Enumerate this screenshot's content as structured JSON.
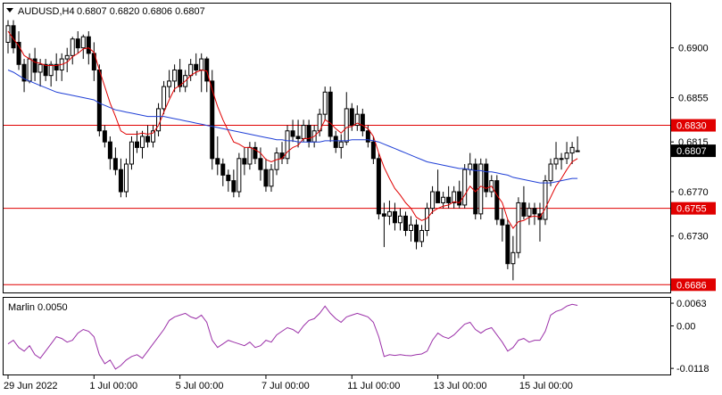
{
  "header": {
    "symbol": "AUDUSD,H4",
    "ohlc": "0.6807 0.6820 0.6806 0.6807"
  },
  "indicator": {
    "title": "Marlin 0.0050",
    "ticks": [
      "0.0063",
      "0.00",
      "-0.0118"
    ]
  },
  "chart_data": [
    {
      "type": "candlestick",
      "name": "AUDUSD,H4",
      "x_labels": [
        "29 Jun 2022",
        "1 Jul 00:00",
        "5 Jul 00:00",
        "7 Jul 00:00",
        "11 Jul 00:00",
        "13 Jul 00:00",
        "15 Jul 00:00"
      ],
      "y_ticks": [
        "0.6900",
        "0.6855",
        "0.6815",
        "0.6770",
        "0.6730"
      ],
      "ylim": [
        0.6679,
        0.694
      ],
      "horizontal_levels": [
        {
          "value": 0.683,
          "label": "0.6830",
          "color": "#e00000"
        },
        {
          "value": 0.6755,
          "label": "0.6755",
          "color": "#e00000"
        },
        {
          "value": 0.6686,
          "label": "0.6686",
          "color": "#e00000"
        }
      ],
      "last_price": {
        "value": 0.6807,
        "label": "0.6807"
      },
      "candles": [
        [
          0.6905,
          0.6925,
          0.6895,
          0.692
        ],
        [
          0.692,
          0.6925,
          0.6895,
          0.69
        ],
        [
          0.6905,
          0.6915,
          0.688,
          0.6885
        ],
        [
          0.6885,
          0.689,
          0.686,
          0.687
        ],
        [
          0.687,
          0.6895,
          0.6868,
          0.689
        ],
        [
          0.689,
          0.69,
          0.687,
          0.6878
        ],
        [
          0.6878,
          0.689,
          0.6865,
          0.6885
        ],
        [
          0.6885,
          0.689,
          0.687,
          0.6875
        ],
        [
          0.6875,
          0.6888,
          0.6865,
          0.6885
        ],
        [
          0.6885,
          0.6895,
          0.687,
          0.688
        ],
        [
          0.688,
          0.6895,
          0.687,
          0.689
        ],
        [
          0.689,
          0.69,
          0.6878,
          0.6893
        ],
        [
          0.6893,
          0.691,
          0.6885,
          0.6908
        ],
        [
          0.6908,
          0.6915,
          0.6895,
          0.69
        ],
        [
          0.69,
          0.6912,
          0.689,
          0.691
        ],
        [
          0.691,
          0.6915,
          0.6885,
          0.6895
        ],
        [
          0.6895,
          0.6905,
          0.687,
          0.688
        ],
        [
          0.688,
          0.6885,
          0.682,
          0.6825
        ],
        [
          0.6825,
          0.683,
          0.681,
          0.6815
        ],
        [
          0.6815,
          0.682,
          0.679,
          0.68
        ],
        [
          0.68,
          0.681,
          0.6785,
          0.679
        ],
        [
          0.679,
          0.68,
          0.6765,
          0.677
        ],
        [
          0.677,
          0.68,
          0.6765,
          0.6795
        ],
        [
          0.6795,
          0.682,
          0.679,
          0.6815
        ],
        [
          0.6815,
          0.6825,
          0.6805,
          0.681
        ],
        [
          0.681,
          0.6825,
          0.68,
          0.682
        ],
        [
          0.682,
          0.683,
          0.681,
          0.6815
        ],
        [
          0.6815,
          0.683,
          0.681,
          0.6825
        ],
        [
          0.6825,
          0.685,
          0.682,
          0.6845
        ],
        [
          0.6845,
          0.687,
          0.684,
          0.6865
        ],
        [
          0.6865,
          0.688,
          0.6855,
          0.687
        ],
        [
          0.687,
          0.6885,
          0.686,
          0.688
        ],
        [
          0.688,
          0.689,
          0.686,
          0.6865
        ],
        [
          0.6865,
          0.688,
          0.686,
          0.6875
        ],
        [
          0.6875,
          0.689,
          0.687,
          0.6885
        ],
        [
          0.6885,
          0.6895,
          0.6875,
          0.688
        ],
        [
          0.688,
          0.6895,
          0.686,
          0.689
        ],
        [
          0.689,
          0.6892,
          0.686,
          0.687
        ],
        [
          0.687,
          0.688,
          0.679,
          0.68
        ],
        [
          0.68,
          0.682,
          0.6785,
          0.6795
        ],
        [
          0.6795,
          0.68,
          0.6775,
          0.6785
        ],
        [
          0.6785,
          0.679,
          0.677,
          0.678
        ],
        [
          0.678,
          0.679,
          0.6765,
          0.677
        ],
        [
          0.677,
          0.6805,
          0.6765,
          0.68
        ],
        [
          0.68,
          0.681,
          0.6785,
          0.6795
        ],
        [
          0.6795,
          0.6815,
          0.679,
          0.681
        ],
        [
          0.681,
          0.6815,
          0.6795,
          0.68
        ],
        [
          0.68,
          0.681,
          0.678,
          0.679
        ],
        [
          0.679,
          0.68,
          0.677,
          0.6775
        ],
        [
          0.6775,
          0.6795,
          0.677,
          0.679
        ],
        [
          0.679,
          0.681,
          0.6785,
          0.6805
        ],
        [
          0.6805,
          0.6815,
          0.6795,
          0.68
        ],
        [
          0.68,
          0.683,
          0.6795,
          0.6825
        ],
        [
          0.6825,
          0.6835,
          0.6815,
          0.682
        ],
        [
          0.682,
          0.6835,
          0.681,
          0.6818
        ],
        [
          0.6818,
          0.6835,
          0.6815,
          0.683
        ],
        [
          0.683,
          0.6835,
          0.681,
          0.6815
        ],
        [
          0.6815,
          0.683,
          0.681,
          0.6825
        ],
        [
          0.6825,
          0.6845,
          0.682,
          0.684
        ],
        [
          0.684,
          0.6865,
          0.6835,
          0.686
        ],
        [
          0.686,
          0.6865,
          0.6815,
          0.682
        ],
        [
          0.682,
          0.6825,
          0.6805,
          0.681
        ],
        [
          0.681,
          0.6822,
          0.68,
          0.6815
        ],
        [
          0.6815,
          0.686,
          0.6812,
          0.6845
        ],
        [
          0.6845,
          0.685,
          0.6825,
          0.683
        ],
        [
          0.683,
          0.6848,
          0.6825,
          0.684
        ],
        [
          0.684,
          0.6845,
          0.682,
          0.6825
        ],
        [
          0.6825,
          0.683,
          0.681,
          0.6815
        ],
        [
          0.6815,
          0.682,
          0.6795,
          0.68
        ],
        [
          0.68,
          0.6805,
          0.6745,
          0.675
        ],
        [
          0.675,
          0.676,
          0.672,
          0.6748
        ],
        [
          0.6748,
          0.6762,
          0.674,
          0.6752
        ],
        [
          0.6752,
          0.676,
          0.6735,
          0.6742
        ],
        [
          0.6742,
          0.6755,
          0.6735,
          0.6748
        ],
        [
          0.6748,
          0.6752,
          0.673,
          0.6735
        ],
        [
          0.6735,
          0.6748,
          0.6725,
          0.674
        ],
        [
          0.674,
          0.6745,
          0.6718,
          0.6725
        ],
        [
          0.6725,
          0.674,
          0.672,
          0.6735
        ],
        [
          0.6735,
          0.676,
          0.673,
          0.6755
        ],
        [
          0.6755,
          0.6775,
          0.675,
          0.677
        ],
        [
          0.677,
          0.679,
          0.676,
          0.676
        ],
        [
          0.676,
          0.677,
          0.6755,
          0.6765
        ],
        [
          0.6765,
          0.6775,
          0.6755,
          0.676
        ],
        [
          0.676,
          0.6775,
          0.6755,
          0.677
        ],
        [
          0.677,
          0.678,
          0.6755,
          0.6758
        ],
        [
          0.6758,
          0.6795,
          0.6755,
          0.679
        ],
        [
          0.679,
          0.6805,
          0.6785,
          0.6795
        ],
        [
          0.6795,
          0.68,
          0.6745,
          0.675
        ],
        [
          0.675,
          0.68,
          0.6745,
          0.6795
        ],
        [
          0.6795,
          0.68,
          0.6765,
          0.677
        ],
        [
          0.677,
          0.6785,
          0.6765,
          0.678
        ],
        [
          0.678,
          0.6785,
          0.674,
          0.6745
        ],
        [
          0.6745,
          0.6755,
          0.6725,
          0.674
        ],
        [
          0.674,
          0.6745,
          0.67,
          0.6705
        ],
        [
          0.6705,
          0.673,
          0.669,
          0.6715
        ],
        [
          0.6715,
          0.6765,
          0.671,
          0.676
        ],
        [
          0.676,
          0.6775,
          0.6745,
          0.6748
        ],
        [
          0.6748,
          0.676,
          0.674,
          0.6755
        ],
        [
          0.6755,
          0.676,
          0.674,
          0.675
        ],
        [
          0.675,
          0.676,
          0.6725,
          0.6745
        ],
        [
          0.6745,
          0.6785,
          0.674,
          0.678
        ],
        [
          0.678,
          0.68,
          0.6775,
          0.6795
        ],
        [
          0.6795,
          0.6815,
          0.679,
          0.68
        ],
        [
          0.68,
          0.6805,
          0.679,
          0.68
        ],
        [
          0.68,
          0.6815,
          0.6795,
          0.6805
        ],
        [
          0.6805,
          0.6815,
          0.6795,
          0.681
        ],
        [
          0.6807,
          0.682,
          0.6806,
          0.6807
        ]
      ],
      "series": [
        {
          "name": "",
          "color": "#e00000",
          "values": [
            0.6915,
            0.6908,
            0.6902,
            0.6893,
            0.689,
            0.6887,
            0.6886,
            0.6884,
            0.6884,
            0.6884,
            0.6885,
            0.6887,
            0.6892,
            0.6895,
            0.6899,
            0.69,
            0.6896,
            0.688,
            0.6865,
            0.685,
            0.6838,
            0.6825,
            0.6822,
            0.6822,
            0.6822,
            0.6823,
            0.6822,
            0.6823,
            0.683,
            0.6842,
            0.6853,
            0.6863,
            0.6866,
            0.687,
            0.6875,
            0.6878,
            0.688,
            0.6879,
            0.6862,
            0.6847,
            0.6835,
            0.6825,
            0.6815,
            0.6813,
            0.681,
            0.681,
            0.6808,
            0.6805,
            0.6799,
            0.6797,
            0.6799,
            0.68,
            0.6806,
            0.681,
            0.6812,
            0.6818,
            0.6818,
            0.682,
            0.6825,
            0.6835,
            0.6832,
            0.6827,
            0.6823,
            0.6828,
            0.6829,
            0.6832,
            0.683,
            0.6827,
            0.682,
            0.6805,
            0.6792,
            0.6782,
            0.6773,
            0.6767,
            0.676,
            0.6755,
            0.6747,
            0.6744,
            0.6746,
            0.6752,
            0.6755,
            0.6757,
            0.6758,
            0.6761,
            0.676,
            0.6767,
            0.6775,
            0.677,
            0.6775,
            0.6773,
            0.6775,
            0.6767,
            0.676,
            0.6745,
            0.6737,
            0.6743,
            0.6744,
            0.6747,
            0.6748,
            0.6747,
            0.6755,
            0.6765,
            0.6775,
            0.6782,
            0.679,
            0.6797,
            0.68
          ]
        },
        {
          "name": "",
          "color": "#1f3fd6",
          "values": [
            0.688,
            0.6878,
            0.6875,
            0.6872,
            0.687,
            0.6868,
            0.6866,
            0.6864,
            0.6862,
            0.686,
            0.6859,
            0.6858,
            0.6857,
            0.6856,
            0.6855,
            0.6854,
            0.6853,
            0.685,
            0.6848,
            0.6846,
            0.6844,
            0.6843,
            0.6842,
            0.6841,
            0.684,
            0.6839,
            0.6838,
            0.6838,
            0.6838,
            0.6838,
            0.6837,
            0.6836,
            0.6835,
            0.6834,
            0.6833,
            0.6832,
            0.6831,
            0.683,
            0.6829,
            0.6828,
            0.6827,
            0.6826,
            0.6825,
            0.6824,
            0.6823,
            0.6822,
            0.6821,
            0.682,
            0.6819,
            0.6818,
            0.6817,
            0.6817,
            0.6816,
            0.6816,
            0.6815,
            0.6815,
            0.6815,
            0.6815,
            0.6815,
            0.6816,
            0.6816,
            0.6816,
            0.6816,
            0.6816,
            0.6817,
            0.6817,
            0.6817,
            0.6817,
            0.6816,
            0.6815,
            0.6813,
            0.6811,
            0.6809,
            0.6807,
            0.6805,
            0.6803,
            0.6801,
            0.6799,
            0.6797,
            0.6796,
            0.6795,
            0.6794,
            0.6793,
            0.6792,
            0.6791,
            0.6791,
            0.679,
            0.6789,
            0.6789,
            0.6788,
            0.6788,
            0.6787,
            0.6786,
            0.6785,
            0.6783,
            0.6782,
            0.6781,
            0.678,
            0.6779,
            0.6778,
            0.6778,
            0.6778,
            0.6779,
            0.678,
            0.6781,
            0.6782,
            0.6782
          ]
        }
      ]
    },
    {
      "type": "line",
      "name": "Marlin 0.0050",
      "ylim": [
        -0.0135,
        0.0078
      ],
      "y_ticks": [
        0.0063,
        0.0,
        -0.0118
      ],
      "color": "#9b30a8",
      "values": [
        -0.005,
        -0.004,
        -0.006,
        -0.007,
        -0.0055,
        -0.008,
        -0.009,
        -0.007,
        -0.005,
        -0.003,
        -0.0035,
        -0.0045,
        -0.004,
        -0.002,
        -0.001,
        -0.0015,
        -0.003,
        -0.008,
        -0.0105,
        -0.0095,
        -0.012,
        -0.011,
        -0.0095,
        -0.0085,
        -0.008,
        -0.009,
        -0.007,
        -0.005,
        -0.003,
        -0.001,
        0.0015,
        0.0025,
        0.003,
        0.0035,
        0.0025,
        0.002,
        0.003,
        0.001,
        -0.004,
        -0.006,
        -0.005,
        -0.004,
        -0.0045,
        -0.005,
        -0.0055,
        -0.0045,
        -0.006,
        -0.0055,
        -0.004,
        -0.0045,
        -0.0025,
        -0.0015,
        -0.0005,
        -0.001,
        -0.002,
        0.0,
        0.0015,
        0.002,
        0.0035,
        0.0055,
        0.0035,
        0.002,
        0.001,
        0.0025,
        0.003,
        0.0035,
        0.003,
        0.0025,
        0.001,
        -0.003,
        -0.0085,
        -0.008,
        -0.0082,
        -0.008,
        -0.0082,
        -0.0083,
        -0.008,
        -0.0078,
        -0.007,
        -0.004,
        -0.002,
        -0.003,
        -0.0035,
        -0.0025,
        -0.001,
        0.0005,
        0.001,
        -0.001,
        -0.002,
        -0.001,
        -0.0005,
        -0.0025,
        -0.0045,
        -0.007,
        -0.006,
        -0.004,
        -0.0035,
        -0.0045,
        -0.004,
        -0.004,
        -0.0015,
        0.003,
        0.004,
        0.0045,
        0.0055,
        0.006,
        0.0057
      ]
    }
  ]
}
